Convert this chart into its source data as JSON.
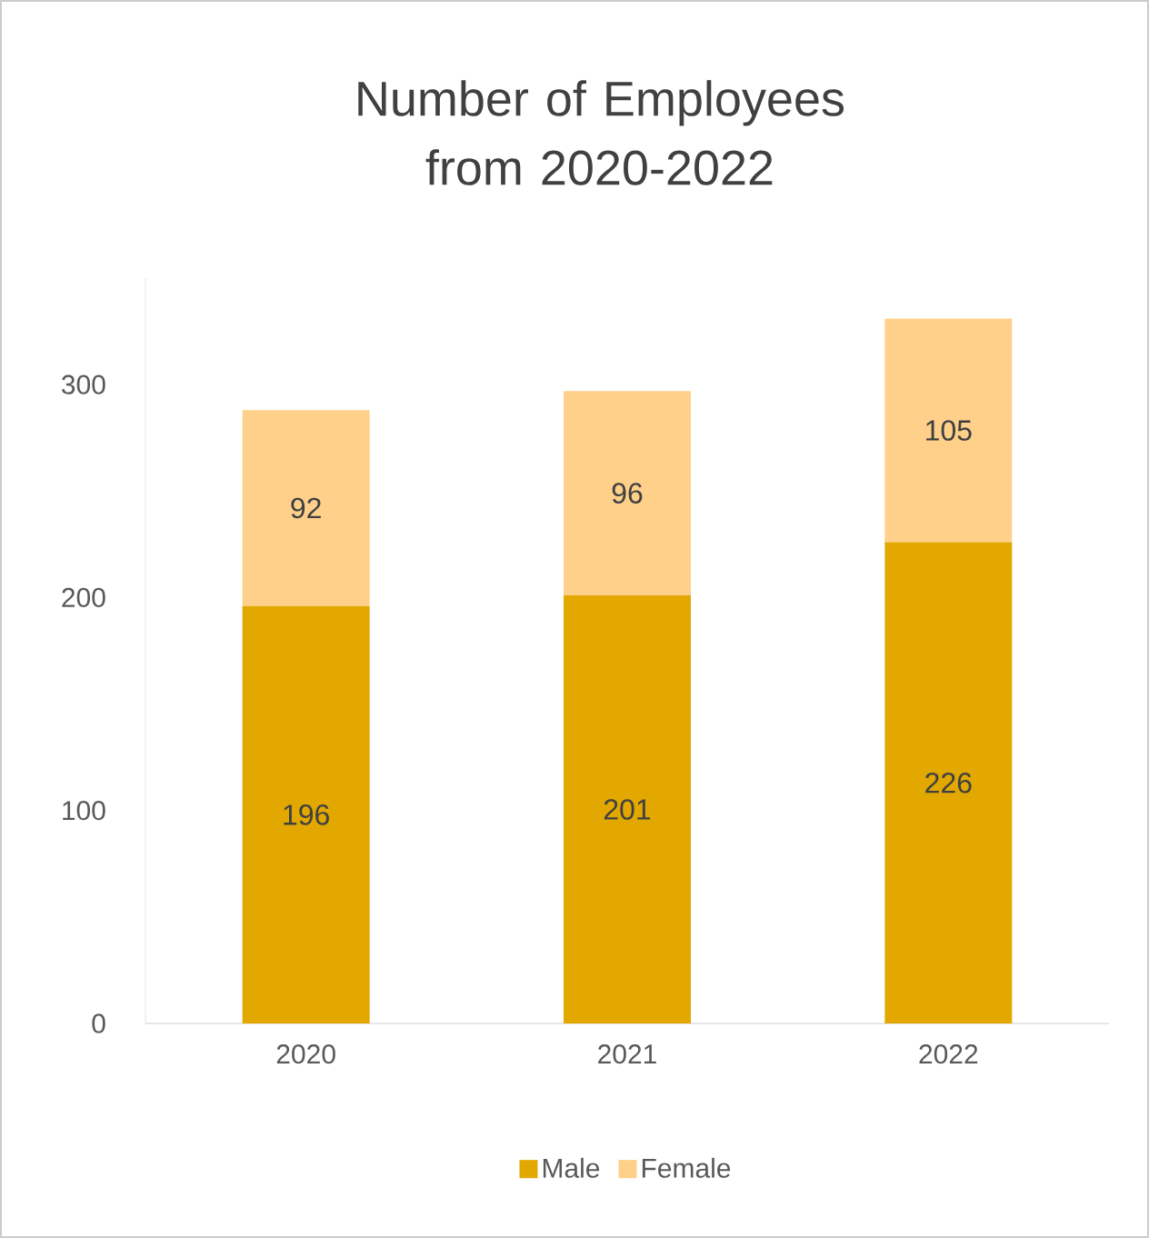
{
  "chart_data": {
    "type": "bar",
    "stacked": true,
    "title": "Number of Employees from 2020-2022",
    "categories": [
      "2020",
      "2021",
      "2022"
    ],
    "series": [
      {
        "name": "Male",
        "color": "#e2a800",
        "values": [
          196,
          201,
          226
        ]
      },
      {
        "name": "Female",
        "color": "#ffd08a",
        "values": [
          92,
          96,
          105
        ]
      }
    ],
    "ylim": [
      0,
      350
    ],
    "yticks": [
      0,
      100,
      200,
      300
    ],
    "data_labels": true,
    "grid": false,
    "legend": "bottom"
  }
}
